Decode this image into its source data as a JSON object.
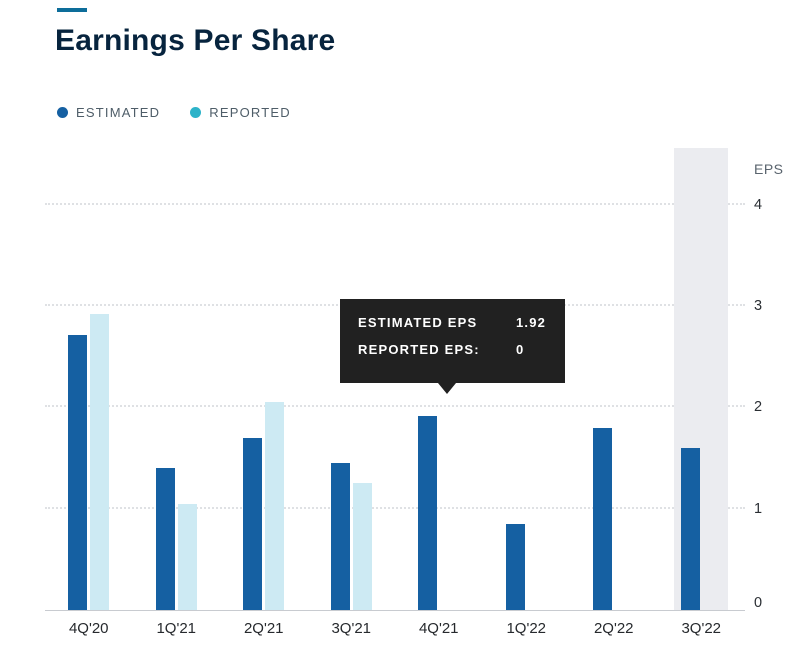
{
  "page": {
    "title": "Earnings Per Share"
  },
  "legend": [
    {
      "label": "ESTIMATED",
      "color": "#1560a2"
    },
    {
      "label": "REPORTED",
      "color": "#2db3c9"
    }
  ],
  "chart_data": {
    "type": "bar",
    "title": "Earnings Per Share",
    "categories": [
      "4Q'20",
      "1Q'21",
      "2Q'21",
      "3Q'21",
      "4Q'21",
      "1Q'22",
      "2Q'22",
      "3Q'22"
    ],
    "series": [
      {
        "name": "ESTIMATED",
        "color": "#1560a2",
        "values": [
          2.71,
          1.4,
          1.7,
          1.45,
          1.92,
          0.85,
          1.8,
          1.6
        ]
      },
      {
        "name": "REPORTED",
        "color": "#cdeaf3",
        "values": [
          2.92,
          1.05,
          2.05,
          1.25,
          0,
          0,
          0,
          0
        ]
      }
    ],
    "ylabel": "EPS",
    "yticks": [
      0,
      1,
      2,
      3,
      4
    ],
    "ylim": [
      0,
      4.56
    ],
    "grid": "dotted-horizontal",
    "legend_position": "top-left",
    "y_axis_side": "right",
    "highlight_category": "3Q'22"
  },
  "tooltip": {
    "rows": [
      {
        "label": "ESTIMATED EPS",
        "value": "1.92"
      },
      {
        "label": "REPORTED EPS:",
        "value": "0"
      }
    ],
    "anchor_category": "4Q'21"
  },
  "colors": {
    "accent": "#0d6d9a",
    "highlight_band": "#ebecf0",
    "tooltip_bg": "#212121",
    "grid_line": "#dfe1e4",
    "axis_line": "#c8cbd0"
  }
}
